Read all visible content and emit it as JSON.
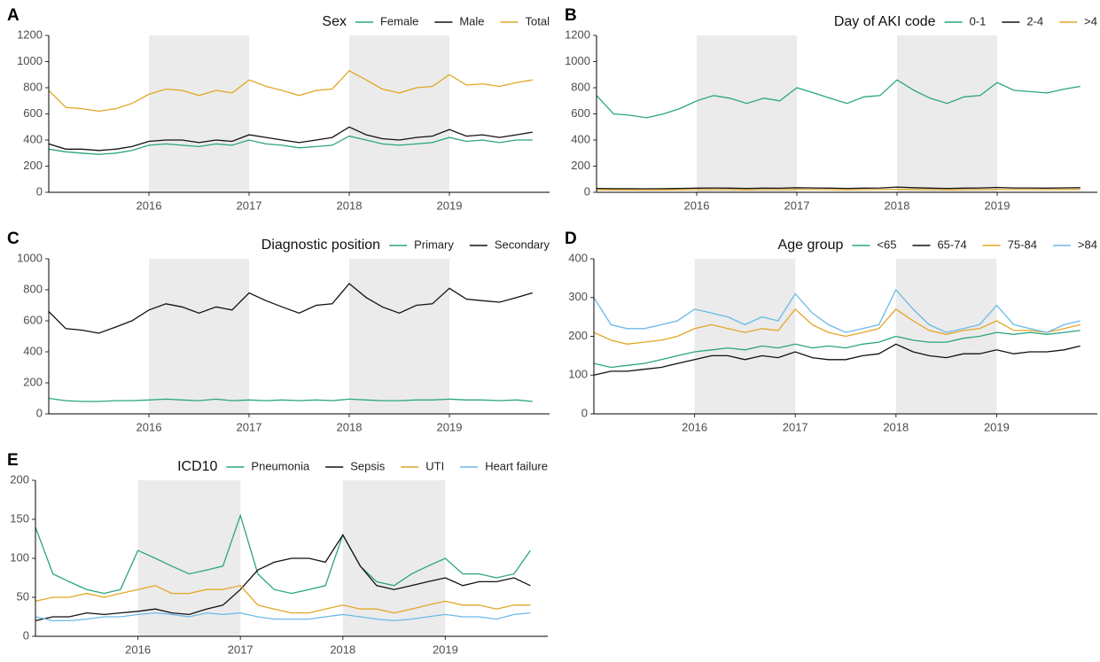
{
  "chart_data": [
    {
      "type": "line",
      "label": "A",
      "legend_title": "Sex",
      "x": [
        2015,
        2015.17,
        2015.33,
        2015.5,
        2015.67,
        2015.83,
        2016,
        2016.17,
        2016.33,
        2016.5,
        2016.67,
        2016.83,
        2017,
        2017.17,
        2017.33,
        2017.5,
        2017.67,
        2017.83,
        2018,
        2018.17,
        2018.33,
        2018.5,
        2018.67,
        2018.83,
        2019,
        2019.17,
        2019.33,
        2019.5,
        2019.67,
        2019.83
      ],
      "series": [
        {
          "name": "Female",
          "color": "#2aa57f",
          "values": [
            330,
            310,
            300,
            290,
            300,
            320,
            360,
            370,
            360,
            350,
            370,
            360,
            400,
            370,
            360,
            340,
            350,
            360,
            430,
            400,
            370,
            360,
            370,
            380,
            420,
            390,
            400,
            380,
            400,
            400
          ]
        },
        {
          "name": "Male",
          "color": "#111111",
          "values": [
            370,
            330,
            330,
            320,
            330,
            350,
            390,
            400,
            400,
            380,
            400,
            390,
            440,
            420,
            400,
            380,
            400,
            420,
            500,
            440,
            410,
            400,
            420,
            430,
            480,
            430,
            440,
            420,
            440,
            460
          ]
        },
        {
          "name": "Total",
          "color": "#e3a624",
          "values": [
            780,
            650,
            640,
            620,
            640,
            680,
            750,
            790,
            780,
            740,
            780,
            760,
            860,
            810,
            780,
            740,
            780,
            790,
            930,
            860,
            790,
            760,
            800,
            810,
            900,
            820,
            830,
            810,
            840,
            860
          ]
        }
      ],
      "xlim": [
        2015,
        2020
      ],
      "ylim": [
        0,
        1200
      ],
      "yticks": [
        0,
        200,
        400,
        600,
        800,
        1000,
        1200
      ],
      "xticks": [
        2016,
        2017,
        2018,
        2019
      ],
      "shade": [
        [
          2016,
          2017
        ],
        [
          2018,
          2019
        ]
      ]
    },
    {
      "type": "line",
      "label": "B",
      "legend_title": "Day of AKI code",
      "x": [
        2015,
        2015.17,
        2015.33,
        2015.5,
        2015.67,
        2015.83,
        2016,
        2016.17,
        2016.33,
        2016.5,
        2016.67,
        2016.83,
        2017,
        2017.17,
        2017.33,
        2017.5,
        2017.67,
        2017.83,
        2018,
        2018.17,
        2018.33,
        2018.5,
        2018.67,
        2018.83,
        2019,
        2019.17,
        2019.33,
        2019.5,
        2019.67,
        2019.83
      ],
      "series": [
        {
          "name": "0-1",
          "color": "#2aa57f",
          "values": [
            740,
            600,
            590,
            570,
            600,
            640,
            700,
            740,
            720,
            680,
            720,
            700,
            800,
            760,
            720,
            680,
            730,
            740,
            860,
            780,
            720,
            680,
            730,
            740,
            840,
            780,
            770,
            760,
            790,
            810
          ]
        },
        {
          "name": "2-4",
          "color": "#111111",
          "values": [
            30,
            28,
            28,
            27,
            28,
            30,
            32,
            33,
            32,
            30,
            32,
            31,
            35,
            33,
            32,
            30,
            32,
            33,
            40,
            35,
            32,
            30,
            32,
            33,
            37,
            33,
            33,
            32,
            34,
            35
          ]
        },
        {
          "name": ">4",
          "color": "#e3a624",
          "values": [
            20,
            18,
            18,
            17,
            18,
            19,
            20,
            21,
            20,
            19,
            20,
            20,
            22,
            21,
            20,
            19,
            20,
            21,
            24,
            22,
            20,
            19,
            20,
            21,
            23,
            21,
            21,
            20,
            22,
            22
          ]
        }
      ],
      "xlim": [
        2015,
        2020
      ],
      "ylim": [
        0,
        1200
      ],
      "yticks": [
        0,
        200,
        400,
        600,
        800,
        1000,
        1200
      ],
      "xticks": [
        2016,
        2017,
        2018,
        2019
      ],
      "shade": [
        [
          2016,
          2017
        ],
        [
          2018,
          2019
        ]
      ]
    },
    {
      "type": "line",
      "label": "C",
      "legend_title": "Diagnostic position",
      "x": [
        2015,
        2015.17,
        2015.33,
        2015.5,
        2015.67,
        2015.83,
        2016,
        2016.17,
        2016.33,
        2016.5,
        2016.67,
        2016.83,
        2017,
        2017.17,
        2017.33,
        2017.5,
        2017.67,
        2017.83,
        2018,
        2018.17,
        2018.33,
        2018.5,
        2018.67,
        2018.83,
        2019,
        2019.17,
        2019.33,
        2019.5,
        2019.67,
        2019.83
      ],
      "series": [
        {
          "name": "Primary",
          "color": "#2aa57f",
          "values": [
            100,
            85,
            80,
            80,
            85,
            85,
            90,
            95,
            90,
            85,
            95,
            85,
            90,
            85,
            90,
            85,
            90,
            85,
            95,
            90,
            85,
            85,
            90,
            90,
            95,
            90,
            90,
            85,
            90,
            80
          ]
        },
        {
          "name": "Secondary",
          "color": "#111111",
          "values": [
            660,
            550,
            540,
            520,
            560,
            600,
            670,
            710,
            690,
            650,
            690,
            670,
            780,
            730,
            690,
            650,
            700,
            710,
            840,
            750,
            690,
            650,
            700,
            710,
            810,
            740,
            730,
            720,
            750,
            780
          ]
        }
      ],
      "xlim": [
        2015,
        2020
      ],
      "ylim": [
        0,
        1000
      ],
      "yticks": [
        0,
        200,
        400,
        600,
        800,
        1000
      ],
      "xticks": [
        2016,
        2017,
        2018,
        2019
      ],
      "shade": [
        [
          2016,
          2017
        ],
        [
          2018,
          2019
        ]
      ]
    },
    {
      "type": "line",
      "label": "D",
      "legend_title": "Age group",
      "x": [
        2015,
        2015.17,
        2015.33,
        2015.5,
        2015.67,
        2015.83,
        2016,
        2016.17,
        2016.33,
        2016.5,
        2016.67,
        2016.83,
        2017,
        2017.17,
        2017.33,
        2017.5,
        2017.67,
        2017.83,
        2018,
        2018.17,
        2018.33,
        2018.5,
        2018.67,
        2018.83,
        2019,
        2019.17,
        2019.33,
        2019.5,
        2019.67,
        2019.83
      ],
      "series": [
        {
          "name": "<65",
          "color": "#2aa57f",
          "values": [
            130,
            120,
            125,
            130,
            140,
            150,
            160,
            165,
            170,
            165,
            175,
            170,
            180,
            170,
            175,
            170,
            180,
            185,
            200,
            190,
            185,
            185,
            195,
            200,
            210,
            205,
            210,
            205,
            210,
            215
          ]
        },
        {
          "name": "65-74",
          "color": "#111111",
          "values": [
            100,
            110,
            110,
            115,
            120,
            130,
            140,
            150,
            150,
            140,
            150,
            145,
            160,
            145,
            140,
            140,
            150,
            155,
            180,
            160,
            150,
            145,
            155,
            155,
            165,
            155,
            160,
            160,
            165,
            175
          ]
        },
        {
          "name": "75-84",
          "color": "#e3a624",
          "values": [
            210,
            190,
            180,
            185,
            190,
            200,
            220,
            230,
            220,
            210,
            220,
            215,
            270,
            230,
            210,
            200,
            210,
            220,
            270,
            240,
            215,
            205,
            215,
            220,
            240,
            215,
            215,
            210,
            220,
            230
          ]
        },
        {
          "name": ">84",
          "color": "#6bb9e8",
          "values": [
            300,
            230,
            220,
            220,
            230,
            240,
            270,
            260,
            250,
            230,
            250,
            240,
            310,
            260,
            230,
            210,
            220,
            230,
            320,
            270,
            230,
            210,
            220,
            230,
            280,
            230,
            220,
            210,
            230,
            240
          ]
        }
      ],
      "xlim": [
        2015,
        2020
      ],
      "ylim": [
        0,
        400
      ],
      "yticks": [
        0,
        100,
        200,
        300,
        400
      ],
      "xticks": [
        2016,
        2017,
        2018,
        2019
      ],
      "shade": [
        [
          2016,
          2017
        ],
        [
          2018,
          2019
        ]
      ]
    },
    {
      "type": "line",
      "label": "E",
      "legend_title": "ICD10",
      "x": [
        2015,
        2015.17,
        2015.33,
        2015.5,
        2015.67,
        2015.83,
        2016,
        2016.17,
        2016.33,
        2016.5,
        2016.67,
        2016.83,
        2017,
        2017.17,
        2017.33,
        2017.5,
        2017.67,
        2017.83,
        2018,
        2018.17,
        2018.33,
        2018.5,
        2018.67,
        2018.83,
        2019,
        2019.17,
        2019.33,
        2019.5,
        2019.67,
        2019.83
      ],
      "series": [
        {
          "name": "Pneumonia",
          "color": "#2aa57f",
          "values": [
            140,
            80,
            70,
            60,
            55,
            60,
            110,
            100,
            90,
            80,
            85,
            90,
            155,
            80,
            60,
            55,
            60,
            65,
            130,
            90,
            70,
            65,
            80,
            90,
            100,
            80,
            80,
            75,
            80,
            110
          ]
        },
        {
          "name": "Sepsis",
          "color": "#111111",
          "values": [
            20,
            25,
            25,
            30,
            28,
            30,
            32,
            35,
            30,
            28,
            35,
            40,
            60,
            85,
            95,
            100,
            100,
            95,
            130,
            90,
            65,
            60,
            65,
            70,
            75,
            65,
            70,
            70,
            75,
            65
          ]
        },
        {
          "name": "UTI",
          "color": "#e3a624",
          "values": [
            45,
            50,
            50,
            55,
            50,
            55,
            60,
            65,
            55,
            55,
            60,
            60,
            65,
            40,
            35,
            30,
            30,
            35,
            40,
            35,
            35,
            30,
            35,
            40,
            45,
            40,
            40,
            35,
            40,
            40
          ]
        },
        {
          "name": "Heart failure",
          "color": "#6bb9e8",
          "values": [
            25,
            20,
            20,
            22,
            25,
            25,
            28,
            30,
            28,
            25,
            30,
            28,
            30,
            25,
            22,
            22,
            22,
            25,
            28,
            25,
            22,
            20,
            22,
            25,
            28,
            25,
            25,
            22,
            28,
            30
          ]
        }
      ],
      "xlim": [
        2015,
        2020
      ],
      "ylim": [
        0,
        200
      ],
      "yticks": [
        0,
        50,
        100,
        150,
        200
      ],
      "xticks": [
        2016,
        2017,
        2018,
        2019
      ],
      "shade": [
        [
          2016,
          2017
        ],
        [
          2018,
          2019
        ]
      ]
    }
  ]
}
